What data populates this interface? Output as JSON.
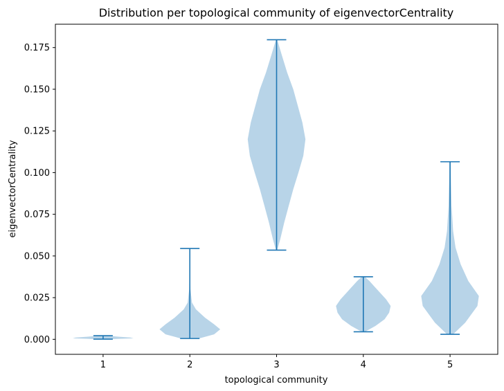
{
  "chart_data": {
    "type": "violin",
    "title": "Distribution per topological community of eigenvectorCentrality",
    "xlabel": "topological community",
    "ylabel": "eigenvectorCentrality",
    "categories": [
      "1",
      "2",
      "3",
      "4",
      "5"
    ],
    "ylim": [
      -0.009,
      0.189
    ],
    "xlim": [
      0.45,
      5.55
    ],
    "yticks": [
      0.0,
      0.025,
      0.05,
      0.075,
      0.1,
      0.125,
      0.15,
      0.175
    ],
    "ytick_labels": [
      "0.000",
      "0.025",
      "0.050",
      "0.075",
      "0.100",
      "0.125",
      "0.150",
      "0.175"
    ],
    "grid": false,
    "legend": "none",
    "colors": {
      "body": "#b8d4e8",
      "stats": "#1f77b4"
    },
    "violins": [
      {
        "category": "1",
        "min": 0.0001,
        "max": 0.0022,
        "profile": [
          [
            0.0001,
            0.2
          ],
          [
            0.0006,
            1.0
          ],
          [
            0.0011,
            0.9
          ],
          [
            0.0016,
            0.5
          ],
          [
            0.0022,
            0.1
          ]
        ]
      },
      {
        "category": "2",
        "min": 0.0005,
        "max": 0.0545,
        "profile": [
          [
            0.0005,
            0.3
          ],
          [
            0.003,
            0.8
          ],
          [
            0.006,
            1.0
          ],
          [
            0.009,
            0.8
          ],
          [
            0.013,
            0.5
          ],
          [
            0.018,
            0.2
          ],
          [
            0.022,
            0.07
          ],
          [
            0.03,
            0.02
          ],
          [
            0.045,
            0.008
          ],
          [
            0.0545,
            0.004
          ]
        ]
      },
      {
        "category": "3",
        "min": 0.0535,
        "max": 0.1797,
        "profile": [
          [
            0.0535,
            0.02
          ],
          [
            0.06,
            0.12
          ],
          [
            0.07,
            0.25
          ],
          [
            0.08,
            0.4
          ],
          [
            0.09,
            0.55
          ],
          [
            0.1,
            0.72
          ],
          [
            0.11,
            0.88
          ],
          [
            0.12,
            0.95
          ],
          [
            0.13,
            0.85
          ],
          [
            0.14,
            0.7
          ],
          [
            0.15,
            0.55
          ],
          [
            0.16,
            0.35
          ],
          [
            0.17,
            0.18
          ],
          [
            0.1797,
            0.02
          ]
        ]
      },
      {
        "category": "4",
        "min": 0.0045,
        "max": 0.0375,
        "profile": [
          [
            0.0045,
            0.05
          ],
          [
            0.008,
            0.4
          ],
          [
            0.012,
            0.7
          ],
          [
            0.016,
            0.85
          ],
          [
            0.02,
            0.9
          ],
          [
            0.024,
            0.75
          ],
          [
            0.028,
            0.55
          ],
          [
            0.032,
            0.35
          ],
          [
            0.035,
            0.2
          ],
          [
            0.0375,
            0.05
          ]
        ]
      },
      {
        "category": "5",
        "min": 0.003,
        "max": 0.1065,
        "profile": [
          [
            0.003,
            0.1
          ],
          [
            0.01,
            0.5
          ],
          [
            0.02,
            0.9
          ],
          [
            0.026,
            0.95
          ],
          [
            0.035,
            0.6
          ],
          [
            0.045,
            0.35
          ],
          [
            0.055,
            0.18
          ],
          [
            0.065,
            0.1
          ],
          [
            0.08,
            0.05
          ],
          [
            0.095,
            0.03
          ],
          [
            0.1065,
            0.02
          ]
        ]
      }
    ]
  }
}
